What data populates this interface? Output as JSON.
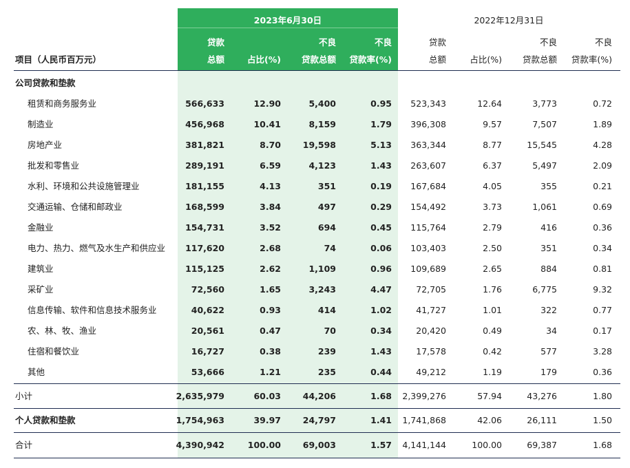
{
  "header": {
    "row_label": "项目（人民币百万元）",
    "periods": [
      "2023年6月30日",
      "2022年12月31日"
    ],
    "columns": [
      [
        "贷款",
        "总额"
      ],
      [
        "占比(%)"
      ],
      [
        "不良",
        "贷款总额"
      ],
      [
        "不良",
        "贷款率(%)"
      ],
      [
        "贷款",
        "总额"
      ],
      [
        "占比(%)"
      ],
      [
        "不良",
        "贷款总额"
      ],
      [
        "不良",
        "贷款率(%)"
      ]
    ]
  },
  "corporate": {
    "title": "公司贷款和垫款",
    "rows": [
      {
        "label": "租赁和商务服务业",
        "values": [
          "566,633",
          "12.90",
          "5,400",
          "0.95",
          "523,343",
          "12.64",
          "3,773",
          "0.72"
        ]
      },
      {
        "label": "制造业",
        "values": [
          "456,968",
          "10.41",
          "8,159",
          "1.79",
          "396,308",
          "9.57",
          "7,507",
          "1.89"
        ]
      },
      {
        "label": "房地产业",
        "values": [
          "381,821",
          "8.70",
          "19,598",
          "5.13",
          "363,344",
          "8.77",
          "15,545",
          "4.28"
        ]
      },
      {
        "label": "批发和零售业",
        "values": [
          "289,191",
          "6.59",
          "4,123",
          "1.43",
          "263,607",
          "6.37",
          "5,497",
          "2.09"
        ]
      },
      {
        "label": "水利、环境和公共设施管理业",
        "values": [
          "181,155",
          "4.13",
          "351",
          "0.19",
          "167,684",
          "4.05",
          "355",
          "0.21"
        ]
      },
      {
        "label": "交通运输、仓储和邮政业",
        "values": [
          "168,599",
          "3.84",
          "497",
          "0.29",
          "154,492",
          "3.73",
          "1,061",
          "0.69"
        ]
      },
      {
        "label": "金融业",
        "values": [
          "154,731",
          "3.52",
          "694",
          "0.45",
          "115,764",
          "2.79",
          "416",
          "0.36"
        ]
      },
      {
        "label": "电力、热力、燃气及水生产和供应业",
        "values": [
          "117,620",
          "2.68",
          "74",
          "0.06",
          "103,403",
          "2.50",
          "351",
          "0.34"
        ]
      },
      {
        "label": "建筑业",
        "values": [
          "115,125",
          "2.62",
          "1,109",
          "0.96",
          "109,689",
          "2.65",
          "884",
          "0.81"
        ]
      },
      {
        "label": "采矿业",
        "values": [
          "72,560",
          "1.65",
          "3,243",
          "4.47",
          "72,705",
          "1.76",
          "6,775",
          "9.32"
        ]
      },
      {
        "label": "信息传输、软件和信息技术服务业",
        "values": [
          "40,622",
          "0.93",
          "414",
          "1.02",
          "41,727",
          "1.01",
          "322",
          "0.77"
        ]
      },
      {
        "label": "农、林、牧、渔业",
        "values": [
          "20,561",
          "0.47",
          "70",
          "0.34",
          "20,420",
          "0.49",
          "34",
          "0.17"
        ]
      },
      {
        "label": "住宿和餐饮业",
        "values": [
          "16,727",
          "0.38",
          "239",
          "1.43",
          "17,578",
          "0.42",
          "577",
          "3.28"
        ]
      },
      {
        "label": "其他",
        "values": [
          "53,666",
          "1.21",
          "235",
          "0.44",
          "49,212",
          "1.19",
          "179",
          "0.36"
        ]
      }
    ]
  },
  "subtotal": {
    "label": "小计",
    "values": [
      "2,635,979",
      "60.03",
      "44,206",
      "1.68",
      "2,399,276",
      "57.94",
      "43,276",
      "1.80"
    ]
  },
  "personal": {
    "label": "个人贷款和垫款",
    "values": [
      "1,754,963",
      "39.97",
      "24,797",
      "1.41",
      "1,741,868",
      "42.06",
      "26,111",
      "1.50"
    ]
  },
  "total": {
    "label": "合计",
    "values": [
      "4,390,942",
      "100.00",
      "69,003",
      "1.57",
      "4,141,144",
      "100.00",
      "69,387",
      "1.68"
    ]
  }
}
